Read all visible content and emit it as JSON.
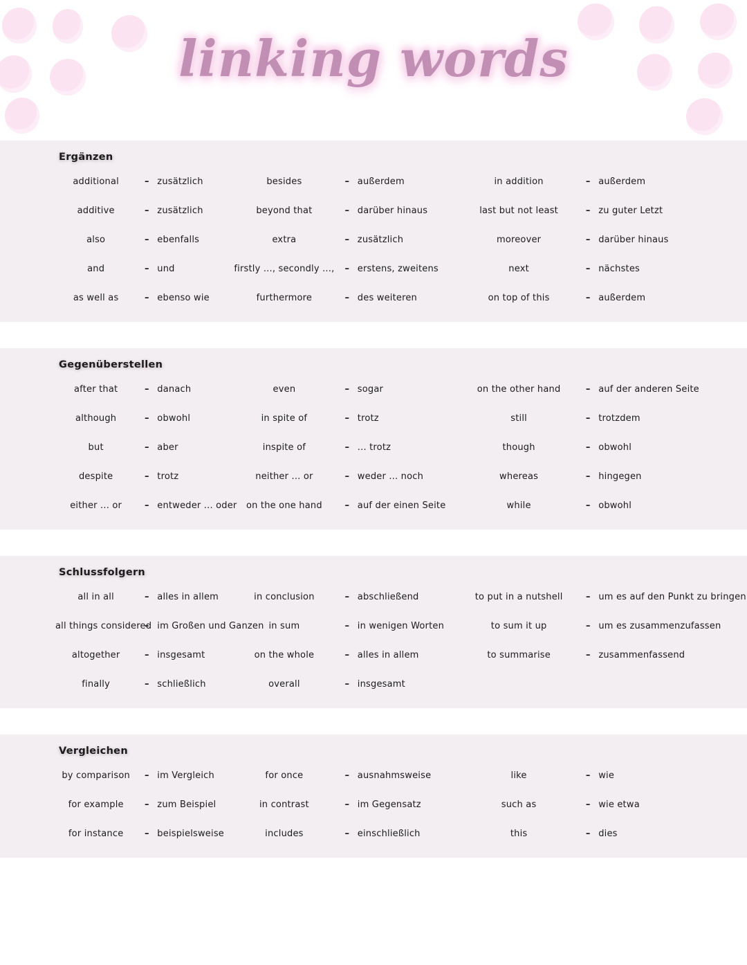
{
  "page": {
    "title": "linking words",
    "separator": "–"
  },
  "colors": {
    "title_text": "#c18fb3",
    "title_glow": "#f8d7ec",
    "panel_background": "#f2eef1",
    "polka_dot": "#fbe3f1",
    "body_text": "#1b1b1b"
  },
  "sections": [
    {
      "heading": "Ergänzen",
      "columns": [
        {
          "pairs": [
            {
              "en": "additional",
              "de": "zusätzlich"
            },
            {
              "en": "additive",
              "de": "zusätzlich"
            },
            {
              "en": "also",
              "de": "ebenfalls"
            },
            {
              "en": "and",
              "de": "und"
            },
            {
              "en": "as well as",
              "de": "ebenso wie"
            }
          ]
        },
        {
          "pairs": [
            {
              "en": "besides",
              "de": "außerdem"
            },
            {
              "en": "beyond that",
              "de": "darüber hinaus"
            },
            {
              "en": "extra",
              "de": "zusätzlich"
            },
            {
              "en": "firstly ..., secondly ...,",
              "de": "erstens, zweitens"
            },
            {
              "en": "furthermore",
              "de": "des weiteren"
            }
          ]
        },
        {
          "pairs": [
            {
              "en": "in addition",
              "de": "außerdem"
            },
            {
              "en": "last but not least",
              "de": "zu guter Letzt"
            },
            {
              "en": "moreover",
              "de": "darüber hinaus"
            },
            {
              "en": "next",
              "de": "nächstes"
            },
            {
              "en": "on top of this",
              "de": "außerdem"
            }
          ]
        }
      ]
    },
    {
      "heading": "Gegenüberstellen",
      "columns": [
        {
          "pairs": [
            {
              "en": "after that",
              "de": "danach"
            },
            {
              "en": "although",
              "de": "obwohl"
            },
            {
              "en": "but",
              "de": "aber"
            },
            {
              "en": "despite",
              "de": "trotz"
            },
            {
              "en": "either ... or",
              "de": "entweder ... oder"
            }
          ]
        },
        {
          "pairs": [
            {
              "en": "even",
              "de": "sogar"
            },
            {
              "en": "in spite of",
              "de": "trotz"
            },
            {
              "en": "inspite of",
              "de": "... trotz"
            },
            {
              "en": "neither ... or",
              "de": "weder ... noch"
            },
            {
              "en": "on the one hand",
              "de": "auf der einen Seite"
            }
          ]
        },
        {
          "pairs": [
            {
              "en": "on the other hand",
              "de": "auf der anderen Seite"
            },
            {
              "en": "still",
              "de": "trotzdem"
            },
            {
              "en": "though",
              "de": "obwohl"
            },
            {
              "en": "whereas",
              "de": "hingegen"
            },
            {
              "en": "while",
              "de": "obwohl"
            }
          ]
        }
      ]
    },
    {
      "heading": "Schlussfolgern",
      "columns": [
        {
          "pairs": [
            {
              "en": "all in all",
              "de": "alles in allem"
            },
            {
              "en": "all things considered",
              "de": "im Großen und Ganzen"
            },
            {
              "en": "altogether",
              "de": "insgesamt"
            },
            {
              "en": "finally",
              "de": "schließlich"
            }
          ]
        },
        {
          "pairs": [
            {
              "en": "in conclusion",
              "de": "abschließend"
            },
            {
              "en": "in sum",
              "de": "in wenigen Worten"
            },
            {
              "en": "on the whole",
              "de": "alles in allem"
            },
            {
              "en": "overall",
              "de": "insgesamt"
            }
          ]
        },
        {
          "pairs": [
            {
              "en": "to put in a nutshell",
              "de": "um es auf den Punkt zu bringen"
            },
            {
              "en": "to sum it up",
              "de": "um es zusammenzufassen"
            },
            {
              "en": "to summarise",
              "de": "zusammenfassend"
            }
          ]
        }
      ]
    },
    {
      "heading": "Vergleichen",
      "columns": [
        {
          "pairs": [
            {
              "en": "by comparison",
              "de": "im Vergleich"
            },
            {
              "en": "for example",
              "de": "zum Beispiel"
            },
            {
              "en": "for instance",
              "de": "beispielsweise"
            }
          ]
        },
        {
          "pairs": [
            {
              "en": "for once",
              "de": "ausnahmsweise"
            },
            {
              "en": "in contrast",
              "de": "im Gegensatz"
            },
            {
              "en": "includes",
              "de": "einschließlich"
            }
          ]
        },
        {
          "pairs": [
            {
              "en": "like",
              "de": "wie"
            },
            {
              "en": "such as",
              "de": "wie etwa"
            },
            {
              "en": "this",
              "de": "dies"
            }
          ]
        }
      ]
    }
  ]
}
